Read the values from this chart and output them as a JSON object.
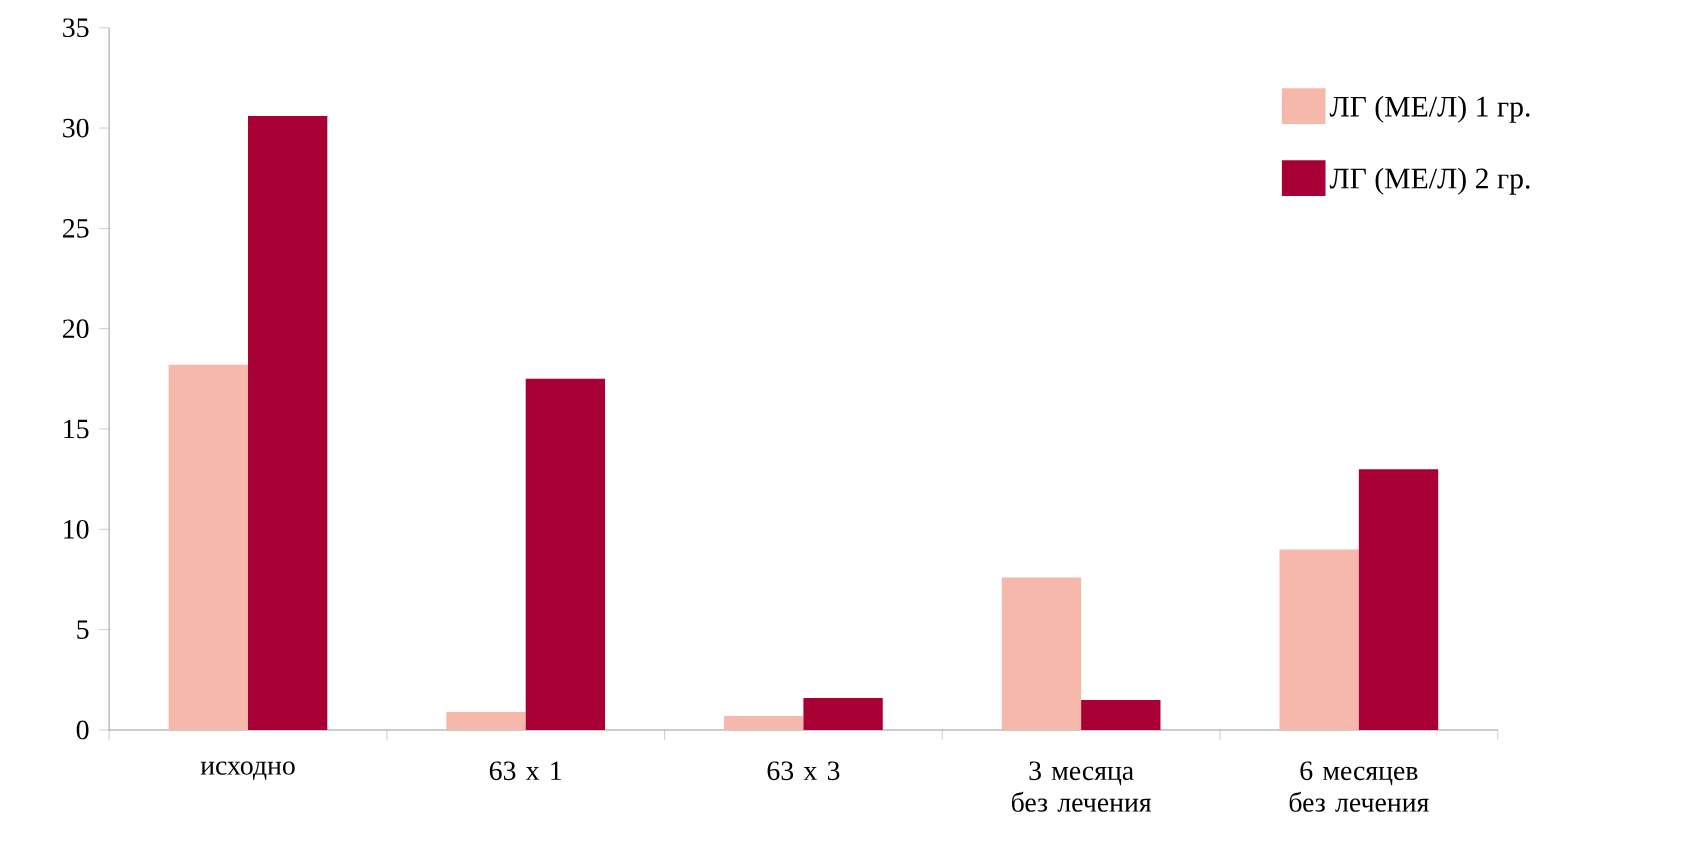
{
  "chart_data": {
    "type": "bar",
    "categories": [
      "исходно",
      "63 х 1",
      "63 х 3",
      "3 месяца без лечения",
      "6 месяцев без лечения"
    ],
    "series": [
      {
        "name": "ЛГ (МЕ/Л) 1 гр.",
        "color": "#f7b8ac",
        "values": [
          18.2,
          0.9,
          0.7,
          7.6,
          9.0
        ]
      },
      {
        "name": "ЛГ (МЕ/Л) 2 гр.",
        "color": "#a80034",
        "values": [
          30.6,
          17.5,
          1.6,
          1.5,
          13.0
        ]
      }
    ],
    "ylim": [
      0,
      35
    ],
    "yticks": [
      0,
      5,
      10,
      15,
      20,
      25,
      30,
      35
    ],
    "grid": false,
    "legend": "top right"
  }
}
